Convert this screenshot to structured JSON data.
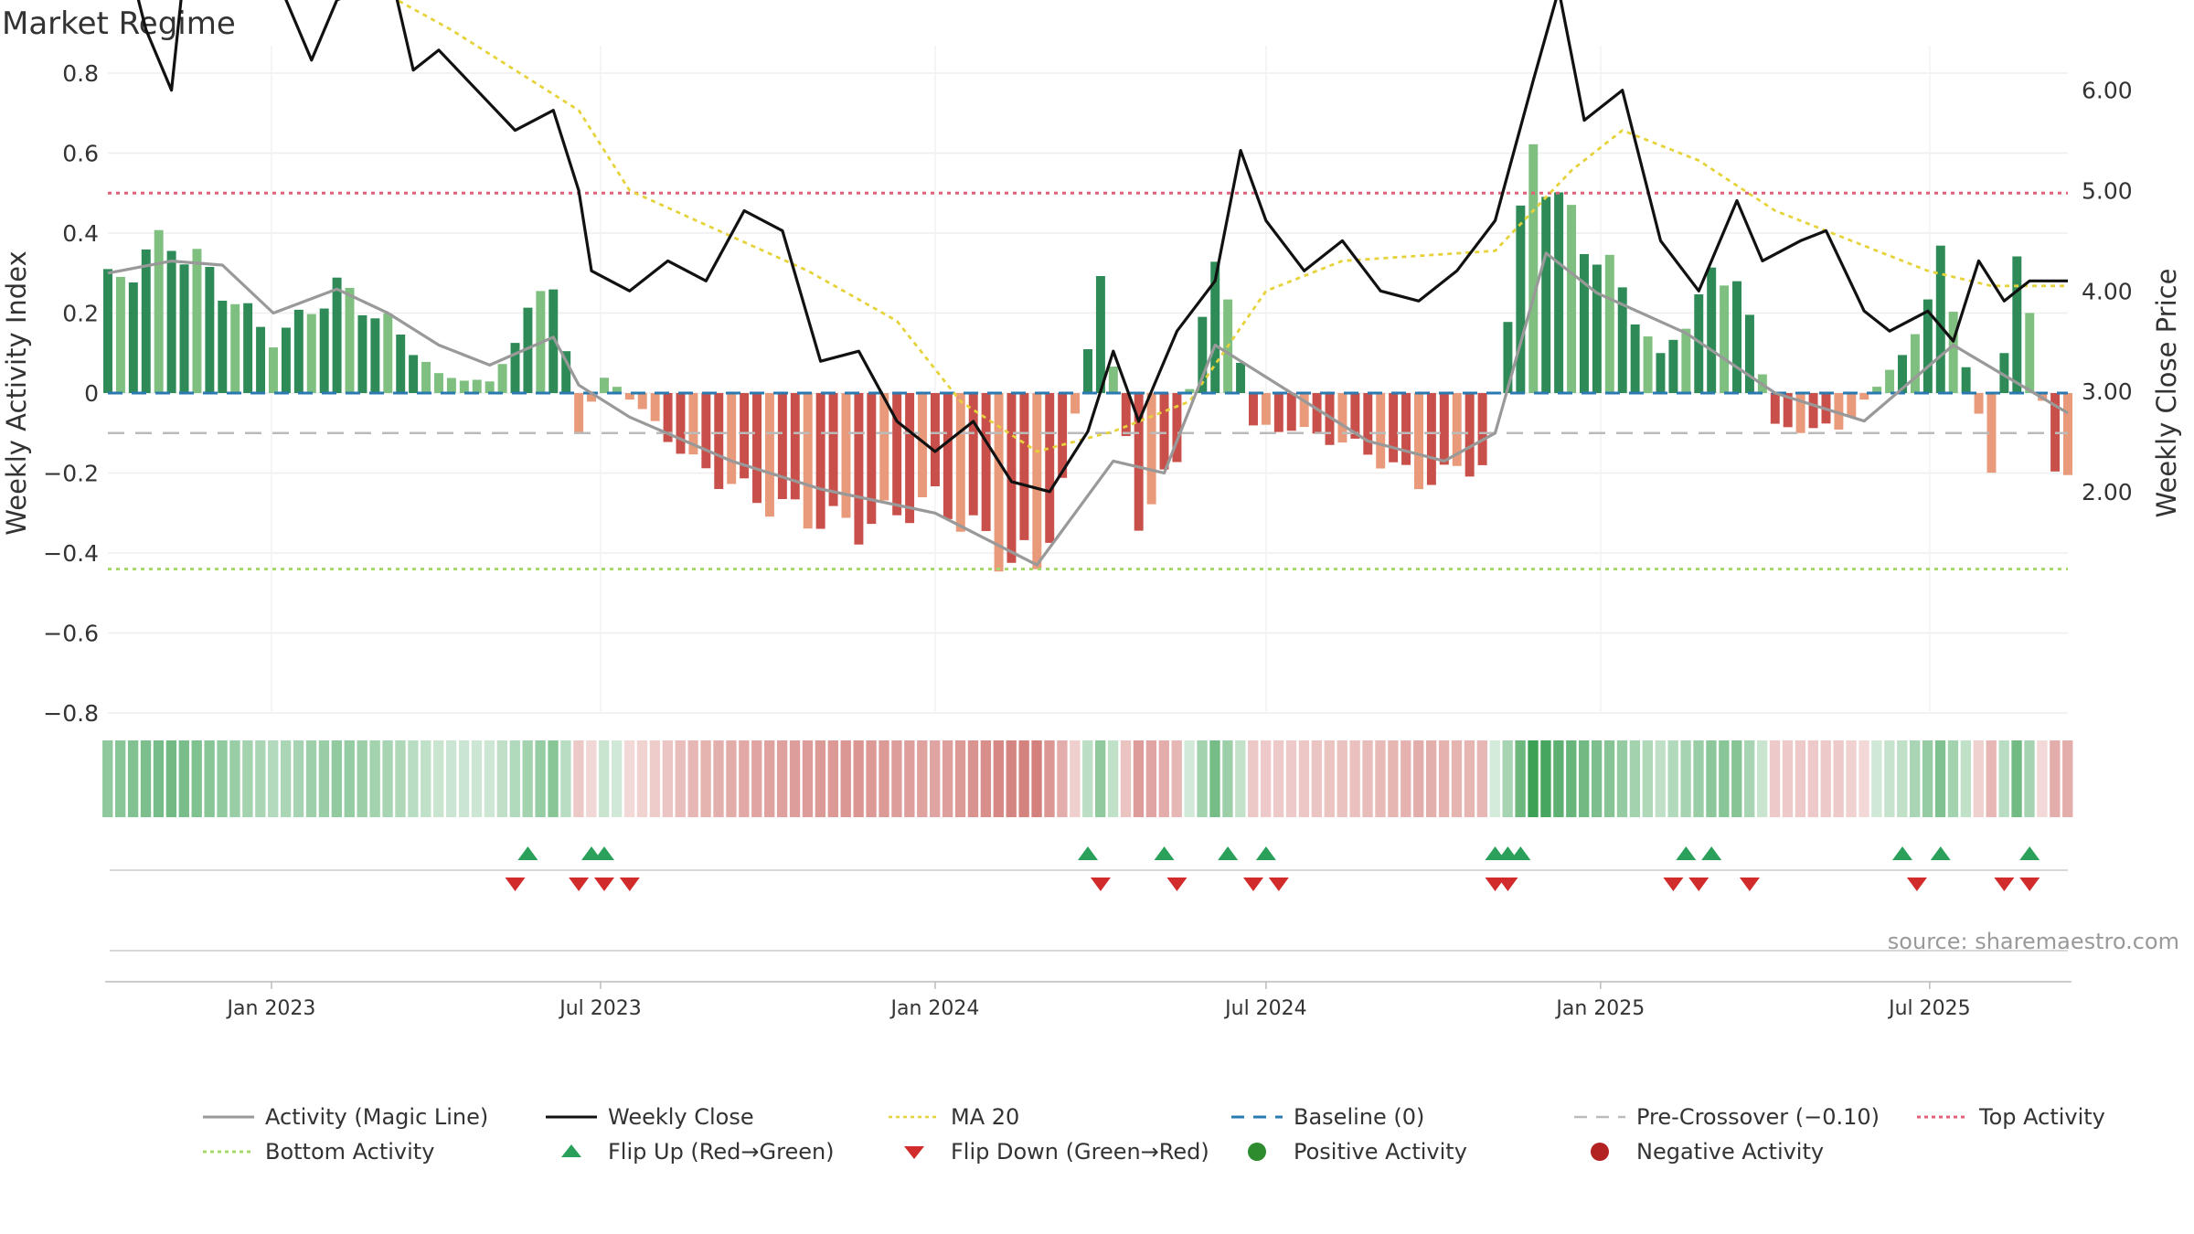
{
  "title": "Market Regime",
  "source": "source: sharemaestro.com",
  "colors": {
    "bar_pos_dark": "#2e8b57",
    "bar_pos_light": "#7fbf7f",
    "bar_neg_dark": "#c9504a",
    "bar_neg_light": "#e89a7a",
    "weekly_close": "#111111",
    "magic_line": "#999999",
    "ma20": "#e6d23a",
    "baseline": "#2a7ab0",
    "pre_crossover": "#bbbbbb",
    "top_activity": "#e0607a",
    "bottom_activity": "#a6d96a",
    "flip_up": "#2aa05a",
    "flip_down": "#d22b2b"
  },
  "chart_data": {
    "type": "bar",
    "title": "Market Regime",
    "ylabel": "Weekly Activity Index",
    "ylabel_right": "Weekly Close Price",
    "ylim": [
      -0.8,
      0.8
    ],
    "ylim_right": [
      1.5,
      8.0
    ],
    "yticks": [
      "0.8",
      "0.6",
      "0.4",
      "0.2",
      "0",
      "−0.2",
      "−0.4",
      "−0.6",
      "−0.8"
    ],
    "yticks_right": [
      "8.00",
      "7.00",
      "6.00",
      "5.00",
      "4.00",
      "3.00",
      "2.00"
    ],
    "x_start": "2022-10-03",
    "x_end": "2025-09-15",
    "xticks": [
      {
        "date": "2023-01-01",
        "label": "Jan 2023"
      },
      {
        "date": "2023-07-01",
        "label": "Jul 2023"
      },
      {
        "date": "2024-01-01",
        "label": "Jan 2024"
      },
      {
        "date": "2024-07-01",
        "label": "Jul 2024"
      },
      {
        "date": "2025-01-01",
        "label": "Jan 2025"
      },
      {
        "date": "2025-07-01",
        "label": "Jul 2025"
      }
    ],
    "reference_lines": {
      "top_activity": 0.5,
      "pre_crossover": -0.1,
      "baseline": 0,
      "bottom_activity": -0.44
    },
    "activity_keys": [
      [
        "2022-10-03",
        0.31
      ],
      [
        "2022-11-07",
        0.44
      ],
      [
        "2022-12-05",
        0.3
      ],
      [
        "2023-01-02",
        0.15
      ],
      [
        "2023-02-06",
        0.3
      ],
      [
        "2023-03-06",
        0.2
      ],
      [
        "2023-04-03",
        0.05
      ],
      [
        "2023-05-01",
        0.03
      ],
      [
        "2023-06-05",
        0.34
      ],
      [
        "2023-06-19",
        -0.1
      ],
      [
        "2023-07-03",
        0.05
      ],
      [
        "2023-07-24",
        -0.05
      ],
      [
        "2023-08-21",
        -0.2
      ],
      [
        "2023-09-25",
        -0.3
      ],
      [
        "2023-10-23",
        -0.35
      ],
      [
        "2023-11-20",
        -0.38
      ],
      [
        "2024-01-01",
        -0.3
      ],
      [
        "2024-02-05",
        -0.45
      ],
      [
        "2024-02-26",
        -0.5
      ],
      [
        "2024-03-11",
        -0.25
      ],
      [
        "2024-04-01",
        0.3
      ],
      [
        "2024-04-22",
        -0.35
      ],
      [
        "2024-05-13",
        -0.2
      ],
      [
        "2024-06-03",
        0.43
      ],
      [
        "2024-06-24",
        -0.1
      ],
      [
        "2024-07-15",
        -0.1
      ],
      [
        "2024-08-19",
        -0.15
      ],
      [
        "2024-09-23",
        -0.25
      ],
      [
        "2024-10-28",
        -0.2
      ],
      [
        "2024-11-11",
        0.2
      ],
      [
        "2024-11-25",
        0.74
      ],
      [
        "2024-12-09",
        0.53
      ],
      [
        "2025-01-06",
        0.35
      ],
      [
        "2025-02-03",
        0.1
      ],
      [
        "2025-03-03",
        0.32
      ],
      [
        "2025-03-17",
        0.35
      ],
      [
        "2025-04-07",
        -0.1
      ],
      [
        "2025-05-12",
        -0.1
      ],
      [
        "2025-06-16",
        0.1
      ],
      [
        "2025-07-07",
        0.37
      ],
      [
        "2025-08-04",
        -0.2
      ],
      [
        "2025-08-18",
        0.44
      ],
      [
        "2025-09-08",
        -0.25
      ]
    ],
    "series": [
      {
        "name": "Weekly Close",
        "axis": "right",
        "points": [
          [
            "2022-10-03",
            7.3
          ],
          [
            "2022-10-17",
            7.1
          ],
          [
            "2022-10-24",
            6.6
          ],
          [
            "2022-11-07",
            6.0
          ],
          [
            "2022-11-14",
            7.2
          ],
          [
            "2022-11-21",
            7.1
          ],
          [
            "2022-11-28",
            7.7
          ],
          [
            "2022-12-12",
            7.1
          ],
          [
            "2022-12-26",
            7.3
          ],
          [
            "2023-01-09",
            6.9
          ],
          [
            "2023-01-23",
            6.3
          ],
          [
            "2023-02-06",
            6.9
          ],
          [
            "2023-02-20",
            7.0
          ],
          [
            "2023-03-06",
            7.3
          ],
          [
            "2023-03-20",
            6.2
          ],
          [
            "2023-04-03",
            6.4
          ],
          [
            "2023-04-24",
            6.0
          ],
          [
            "2023-05-15",
            5.6
          ],
          [
            "2023-06-05",
            5.8
          ],
          [
            "2023-06-19",
            5.0
          ],
          [
            "2023-06-26",
            4.2
          ],
          [
            "2023-07-17",
            4.0
          ],
          [
            "2023-08-07",
            4.3
          ],
          [
            "2023-08-28",
            4.1
          ],
          [
            "2023-09-18",
            4.8
          ],
          [
            "2023-10-09",
            4.6
          ],
          [
            "2023-10-30",
            3.3
          ],
          [
            "2023-11-20",
            3.4
          ],
          [
            "2023-12-11",
            2.7
          ],
          [
            "2024-01-01",
            2.4
          ],
          [
            "2024-01-22",
            2.7
          ],
          [
            "2024-02-12",
            2.1
          ],
          [
            "2024-03-04",
            2.0
          ],
          [
            "2024-03-25",
            2.6
          ],
          [
            "2024-04-08",
            3.4
          ],
          [
            "2024-04-22",
            2.7
          ],
          [
            "2024-05-13",
            3.6
          ],
          [
            "2024-06-03",
            4.1
          ],
          [
            "2024-06-17",
            5.4
          ],
          [
            "2024-07-01",
            4.7
          ],
          [
            "2024-07-22",
            4.2
          ],
          [
            "2024-08-12",
            4.5
          ],
          [
            "2024-09-02",
            4.0
          ],
          [
            "2024-09-23",
            3.9
          ],
          [
            "2024-10-14",
            4.2
          ],
          [
            "2024-11-04",
            4.7
          ],
          [
            "2024-11-25",
            6.1
          ],
          [
            "2024-12-09",
            7.0
          ],
          [
            "2024-12-23",
            5.7
          ],
          [
            "2025-01-13",
            6.0
          ],
          [
            "2025-02-03",
            4.5
          ],
          [
            "2025-02-24",
            4.0
          ],
          [
            "2025-03-17",
            4.9
          ],
          [
            "2025-03-31",
            4.3
          ],
          [
            "2025-04-21",
            4.5
          ],
          [
            "2025-05-05",
            4.6
          ],
          [
            "2025-05-26",
            3.8
          ],
          [
            "2025-06-09",
            3.6
          ],
          [
            "2025-06-30",
            3.8
          ],
          [
            "2025-07-14",
            3.5
          ],
          [
            "2025-07-28",
            4.3
          ],
          [
            "2025-08-11",
            3.9
          ],
          [
            "2025-08-25",
            4.1
          ],
          [
            "2025-09-15",
            4.1
          ]
        ]
      },
      {
        "name": "MA 20",
        "axis": "right",
        "points": [
          [
            "2022-10-03",
            6.95
          ],
          [
            "2023-03-06",
            6.95
          ],
          [
            "2023-04-10",
            6.6
          ],
          [
            "2023-05-15",
            6.2
          ],
          [
            "2023-06-19",
            5.8
          ],
          [
            "2023-07-17",
            5.0
          ],
          [
            "2023-09-04",
            4.6
          ],
          [
            "2023-10-23",
            4.2
          ],
          [
            "2023-12-11",
            3.7
          ],
          [
            "2024-01-15",
            2.9
          ],
          [
            "2024-02-26",
            2.4
          ],
          [
            "2024-04-08",
            2.6
          ],
          [
            "2024-05-20",
            2.9
          ],
          [
            "2024-07-01",
            4.0
          ],
          [
            "2024-08-12",
            4.3
          ],
          [
            "2024-09-23",
            4.35
          ],
          [
            "2024-11-04",
            4.4
          ],
          [
            "2024-12-16",
            5.2
          ],
          [
            "2025-01-13",
            5.6
          ],
          [
            "2025-02-24",
            5.3
          ],
          [
            "2025-04-07",
            4.8
          ],
          [
            "2025-05-19",
            4.5
          ],
          [
            "2025-06-30",
            4.2
          ],
          [
            "2025-08-04",
            4.05
          ],
          [
            "2025-09-15",
            4.05
          ]
        ]
      },
      {
        "name": "Activity (Magic Line)",
        "axis": "left",
        "points": [
          [
            "2022-10-03",
            0.3
          ],
          [
            "2022-11-07",
            0.33
          ],
          [
            "2022-12-05",
            0.32
          ],
          [
            "2023-01-02",
            0.2
          ],
          [
            "2023-02-06",
            0.26
          ],
          [
            "2023-03-06",
            0.2
          ],
          [
            "2023-04-03",
            0.12
          ],
          [
            "2023-05-01",
            0.07
          ],
          [
            "2023-06-05",
            0.14
          ],
          [
            "2023-06-19",
            0.02
          ],
          [
            "2023-07-17",
            -0.06
          ],
          [
            "2023-09-11",
            -0.17
          ],
          [
            "2023-10-30",
            -0.24
          ],
          [
            "2024-01-01",
            -0.3
          ],
          [
            "2024-02-26",
            -0.43
          ],
          [
            "2024-04-08",
            -0.17
          ],
          [
            "2024-05-06",
            -0.2
          ],
          [
            "2024-06-03",
            0.12
          ],
          [
            "2024-07-15",
            0.0
          ],
          [
            "2024-08-26",
            -0.12
          ],
          [
            "2024-10-07",
            -0.17
          ],
          [
            "2024-11-04",
            -0.1
          ],
          [
            "2024-12-02",
            0.35
          ],
          [
            "2024-12-30",
            0.25
          ],
          [
            "2025-02-17",
            0.15
          ],
          [
            "2025-04-07",
            0.0
          ],
          [
            "2025-05-26",
            -0.07
          ],
          [
            "2025-07-14",
            0.12
          ],
          [
            "2025-09-15",
            -0.05
          ]
        ]
      }
    ],
    "flip_up_dates": [
      "2023-05-22",
      "2023-06-26",
      "2023-07-03",
      "2024-03-25",
      "2024-05-06",
      "2024-06-10",
      "2024-07-01",
      "2024-11-04",
      "2024-11-11",
      "2024-11-18",
      "2025-02-17",
      "2025-03-03",
      "2025-06-16",
      "2025-07-07",
      "2025-08-25"
    ],
    "flip_down_dates": [
      "2023-05-15",
      "2023-06-19",
      "2023-07-03",
      "2023-07-17",
      "2024-04-01",
      "2024-05-13",
      "2024-06-24",
      "2024-07-08",
      "2024-11-04",
      "2024-11-11",
      "2025-02-10",
      "2025-02-24",
      "2025-03-24",
      "2025-06-24",
      "2025-08-11",
      "2025-08-25"
    ]
  },
  "legend": [
    {
      "key": "magic",
      "label": "Activity (Magic Line)"
    },
    {
      "key": "close",
      "label": "Weekly Close"
    },
    {
      "key": "ma20",
      "label": "MA 20"
    },
    {
      "key": "baseline",
      "label": "Baseline (0)"
    },
    {
      "key": "precross",
      "label": "Pre-Crossover (−0.10)"
    },
    {
      "key": "top",
      "label": "Top Activity"
    },
    {
      "key": "bottom",
      "label": "Bottom Activity"
    },
    {
      "key": "flipup",
      "label": "Flip Up (Red→Green)"
    },
    {
      "key": "flipdown",
      "label": "Flip Down (Green→Red)"
    },
    {
      "key": "pos",
      "label": "Positive Activity"
    },
    {
      "key": "neg",
      "label": "Negative Activity"
    }
  ]
}
